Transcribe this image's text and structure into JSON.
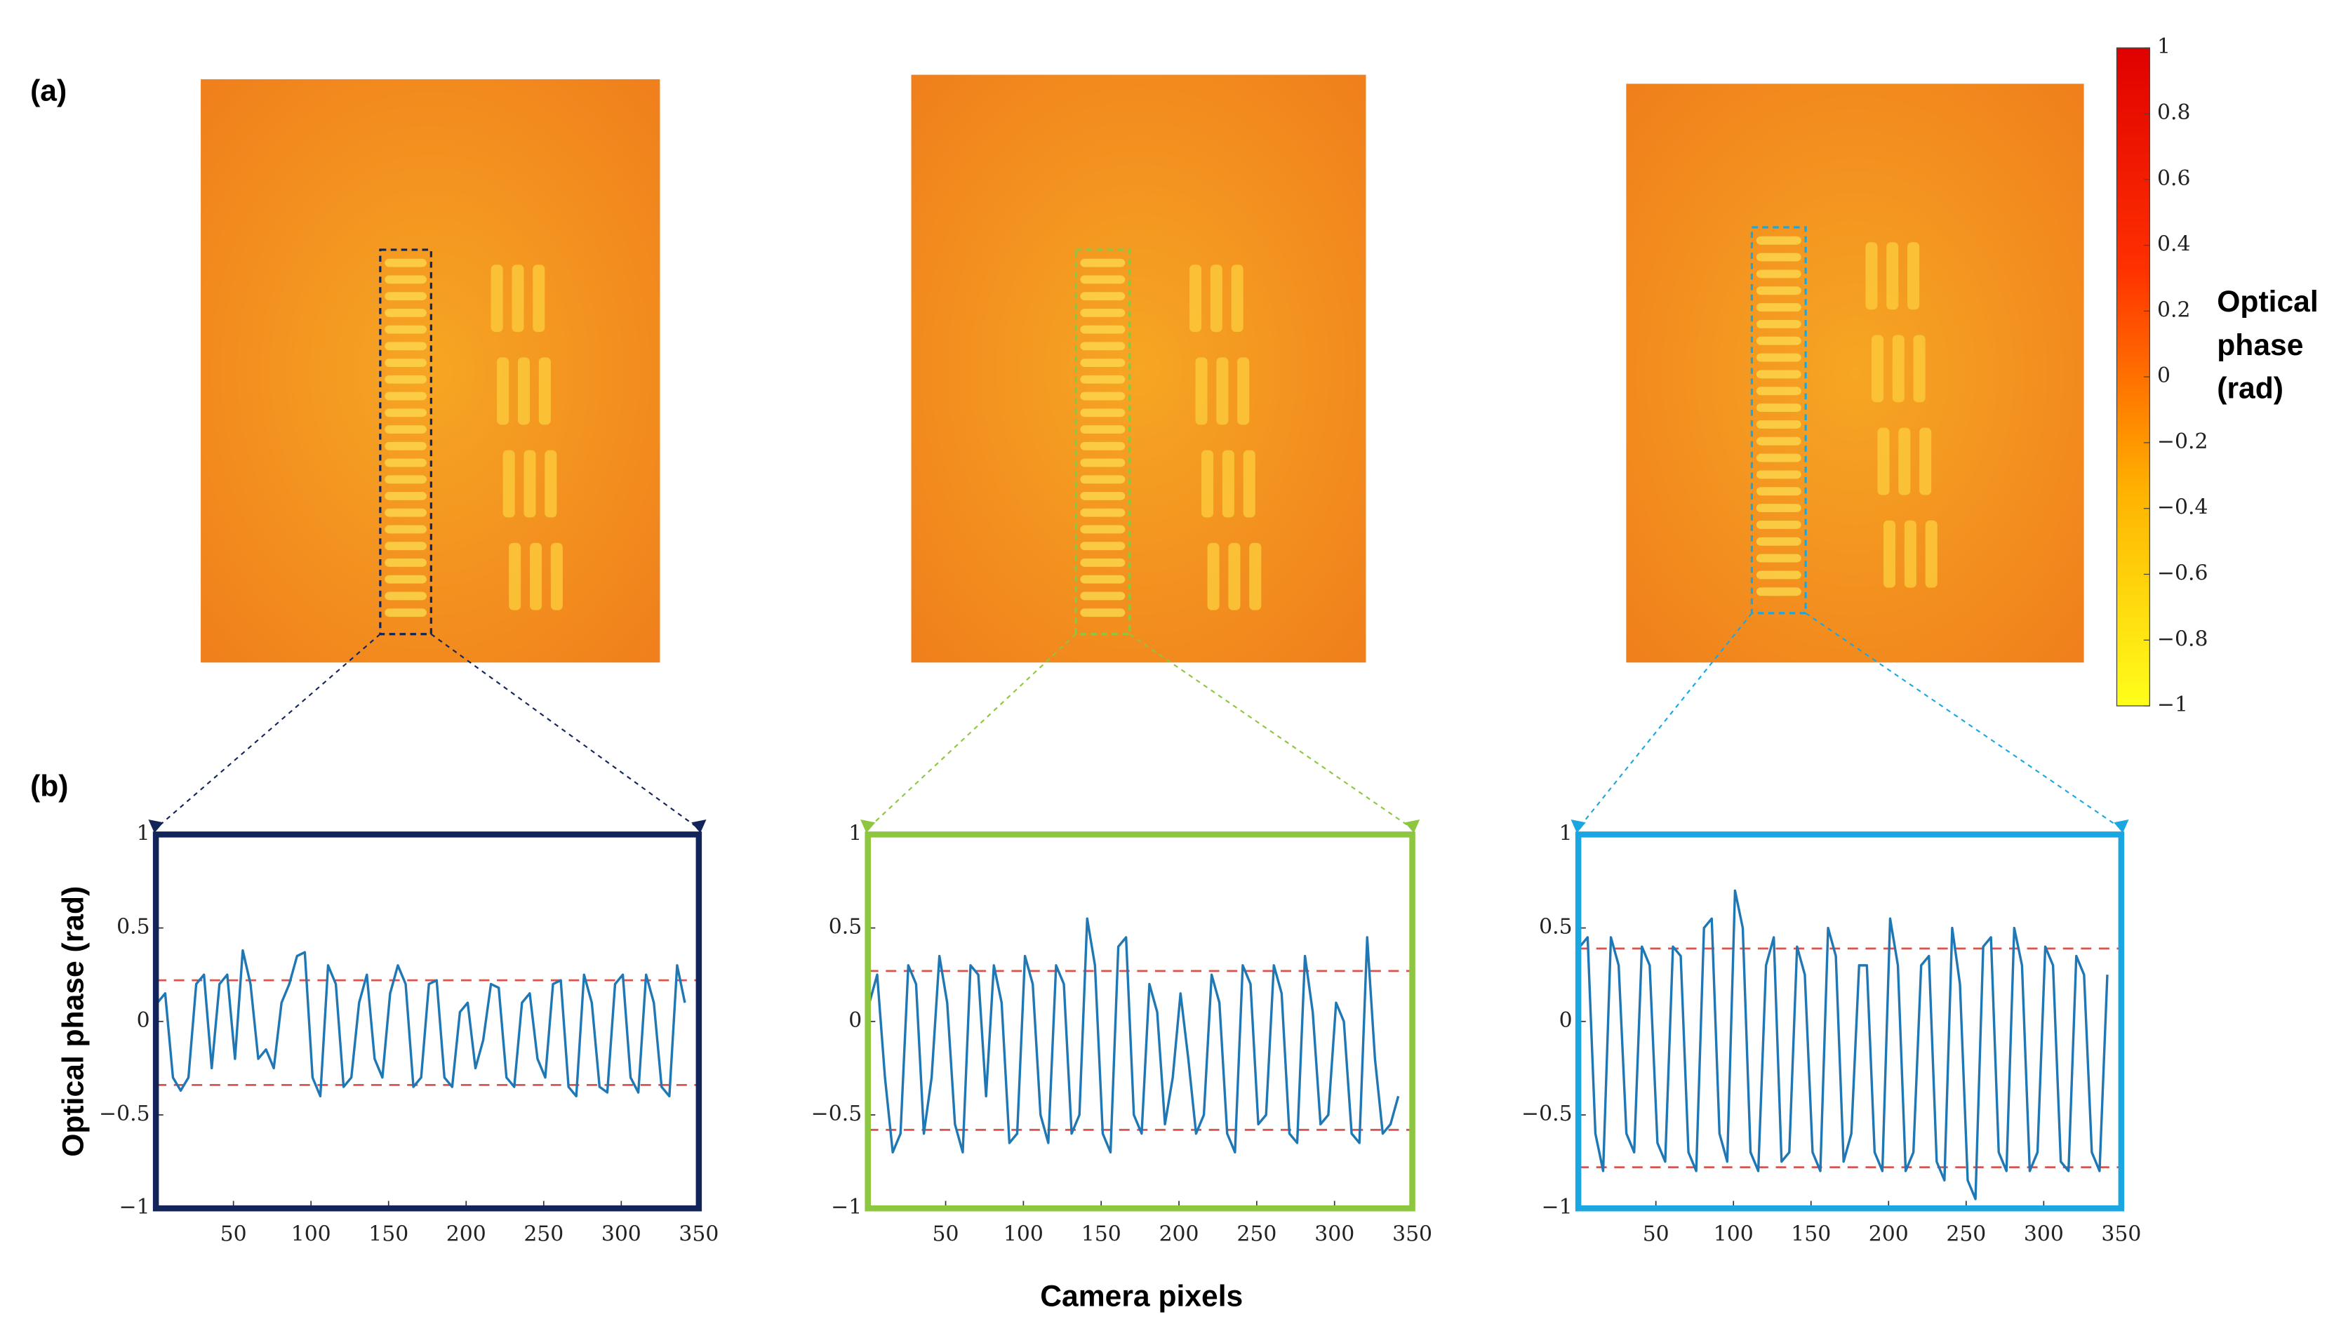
{
  "panel_labels": [
    "(a)",
    "(b)"
  ],
  "xlabel": "Camera pixels",
  "colorbar": {
    "type": "colorbar",
    "label_lines": [
      "Optical",
      "phase",
      "(rad)"
    ],
    "colors": [
      "#ffff1a",
      "#ffb000",
      "#ff3000",
      "#e00000"
    ],
    "ylim": [
      -1,
      1
    ],
    "yticks": [
      1,
      0.8,
      0.6,
      0.4,
      0.2,
      0,
      {
        "value": -0.2,
        "label": "−0.2"
      },
      {
        "value": -0.4,
        "label": "−0.4"
      },
      {
        "value": -0.6,
        "label": "−0.6"
      },
      {
        "value": -0.8,
        "label": "−0.8"
      },
      {
        "value": -1,
        "label": "−1"
      }
    ]
  },
  "chart_data": [
    {
      "type": "line",
      "ylabel": "Optical phase (rad)",
      "frame_color": "#13245a",
      "x": [
        1,
        6,
        11,
        16,
        21,
        26,
        31,
        36,
        41,
        46,
        51,
        56,
        61,
        66,
        71,
        76,
        81,
        86,
        91,
        96,
        101,
        106,
        111,
        116,
        121,
        126,
        131,
        136,
        141,
        146,
        151,
        156,
        161,
        166,
        171,
        176,
        181,
        186,
        191,
        196,
        201,
        206,
        211,
        216,
        221,
        226,
        231,
        236,
        241,
        246,
        251,
        256,
        261,
        266,
        271,
        276,
        281,
        286,
        291,
        296,
        301,
        306,
        311,
        316,
        321,
        326,
        331,
        336,
        341
      ],
      "series": [
        {
          "color": "#1f77b4",
          "values": [
            0.1,
            0.15,
            -0.3,
            -0.37,
            -0.3,
            0.2,
            0.25,
            -0.25,
            0.2,
            0.25,
            -0.2,
            0.38,
            0.2,
            -0.2,
            -0.15,
            -0.25,
            0.1,
            0.2,
            0.35,
            0.37,
            -0.3,
            -0.4,
            0.3,
            0.2,
            -0.35,
            -0.3,
            0.1,
            0.25,
            -0.2,
            -0.3,
            0.15,
            0.3,
            0.2,
            -0.35,
            -0.3,
            0.2,
            0.22,
            -0.3,
            -0.35,
            0.05,
            0.1,
            -0.25,
            -0.1,
            0.2,
            0.18,
            -0.3,
            -0.35,
            0.1,
            0.15,
            -0.2,
            -0.3,
            0.2,
            0.22,
            -0.35,
            -0.4,
            0.25,
            0.1,
            -0.35,
            -0.38,
            0.2,
            0.25,
            -0.3,
            -0.38,
            0.25,
            0.1,
            -0.35,
            -0.4,
            0.3,
            0.1
          ]
        }
      ],
      "hlines": [
        0.22,
        -0.34
      ],
      "hline_color": "#d9534f",
      "xlim": [
        0,
        350
      ],
      "xticks": [
        50,
        100,
        150,
        200,
        250,
        300,
        350
      ],
      "ylim": [
        -1,
        1
      ],
      "yticks": [
        1,
        0.5,
        0,
        {
          "value": -0.5,
          "label": "−0.5"
        },
        {
          "value": -1,
          "label": "−1"
        }
      ]
    },
    {
      "type": "line",
      "frame_color": "#8dc63f",
      "x": [
        1,
        6,
        11,
        16,
        21,
        26,
        31,
        36,
        41,
        46,
        51,
        56,
        61,
        66,
        71,
        76,
        81,
        86,
        91,
        96,
        101,
        106,
        111,
        116,
        121,
        126,
        131,
        136,
        141,
        146,
        151,
        156,
        161,
        166,
        171,
        176,
        181,
        186,
        191,
        196,
        201,
        206,
        211,
        216,
        221,
        226,
        231,
        236,
        241,
        246,
        251,
        256,
        261,
        266,
        271,
        276,
        281,
        286,
        291,
        296,
        301,
        306,
        311,
        316,
        321,
        326,
        331,
        336,
        341
      ],
      "series": [
        {
          "color": "#1f77b4",
          "values": [
            0.1,
            0.25,
            -0.3,
            -0.7,
            -0.6,
            0.3,
            0.2,
            -0.6,
            -0.3,
            0.35,
            0.1,
            -0.55,
            -0.7,
            0.3,
            0.25,
            -0.4,
            0.3,
            0.1,
            -0.65,
            -0.6,
            0.35,
            0.2,
            -0.5,
            -0.65,
            0.3,
            0.2,
            -0.6,
            -0.5,
            0.55,
            0.3,
            -0.6,
            -0.7,
            0.4,
            0.45,
            -0.5,
            -0.6,
            0.2,
            0.05,
            -0.55,
            -0.3,
            0.15,
            -0.2,
            -0.6,
            -0.5,
            0.25,
            0.1,
            -0.6,
            -0.7,
            0.3,
            0.2,
            -0.55,
            -0.5,
            0.3,
            0.15,
            -0.6,
            -0.65,
            0.35,
            0.05,
            -0.55,
            -0.5,
            0.1,
            0.0,
            -0.6,
            -0.65,
            0.45,
            -0.2,
            -0.6,
            -0.55,
            -0.4
          ]
        }
      ],
      "hlines": [
        0.27,
        -0.58
      ],
      "hline_color": "#d9534f",
      "xlim": [
        0,
        350
      ],
      "xticks": [
        50,
        100,
        150,
        200,
        250,
        300,
        350
      ],
      "ylim": [
        -1,
        1
      ],
      "yticks": [
        1,
        0.5,
        0,
        {
          "value": -0.5,
          "label": "−0.5"
        },
        {
          "value": -1,
          "label": "−1"
        }
      ]
    },
    {
      "type": "line",
      "frame_color": "#1aa7e1",
      "x": [
        1,
        6,
        11,
        16,
        21,
        26,
        31,
        36,
        41,
        46,
        51,
        56,
        61,
        66,
        71,
        76,
        81,
        86,
        91,
        96,
        101,
        106,
        111,
        116,
        121,
        126,
        131,
        136,
        141,
        146,
        151,
        156,
        161,
        166,
        171,
        176,
        181,
        186,
        191,
        196,
        201,
        206,
        211,
        216,
        221,
        226,
        231,
        236,
        241,
        246,
        251,
        256,
        261,
        266,
        271,
        276,
        281,
        286,
        291,
        296,
        301,
        306,
        311,
        316,
        321,
        326,
        331,
        336,
        341
      ],
      "series": [
        {
          "color": "#1f77b4",
          "values": [
            0.4,
            0.45,
            -0.6,
            -0.8,
            0.45,
            0.3,
            -0.6,
            -0.7,
            0.4,
            0.3,
            -0.65,
            -0.75,
            0.4,
            0.35,
            -0.7,
            -0.8,
            0.5,
            0.55,
            -0.6,
            -0.75,
            0.7,
            0.5,
            -0.7,
            -0.8,
            0.3,
            0.45,
            -0.75,
            -0.7,
            0.4,
            0.25,
            -0.7,
            -0.8,
            0.5,
            0.35,
            -0.75,
            -0.6,
            0.3,
            0.3,
            -0.7,
            -0.8,
            0.55,
            0.3,
            -0.8,
            -0.7,
            0.3,
            0.35,
            -0.75,
            -0.85,
            0.5,
            0.2,
            -0.85,
            -0.95,
            0.4,
            0.45,
            -0.7,
            -0.8,
            0.5,
            0.3,
            -0.8,
            -0.7,
            0.4,
            0.3,
            -0.75,
            -0.8,
            0.35,
            0.25,
            -0.7,
            -0.8,
            0.25
          ]
        }
      ],
      "hlines": [
        0.39,
        -0.78
      ],
      "hline_color": "#d9534f",
      "xlim": [
        0,
        350
      ],
      "xticks": [
        50,
        100,
        150,
        200,
        250,
        300,
        350
      ],
      "ylim": [
        -1,
        1
      ],
      "yticks": [
        1,
        0.5,
        0,
        {
          "value": -0.5,
          "label": "−0.5"
        },
        {
          "value": -1,
          "label": "−1"
        }
      ]
    }
  ]
}
